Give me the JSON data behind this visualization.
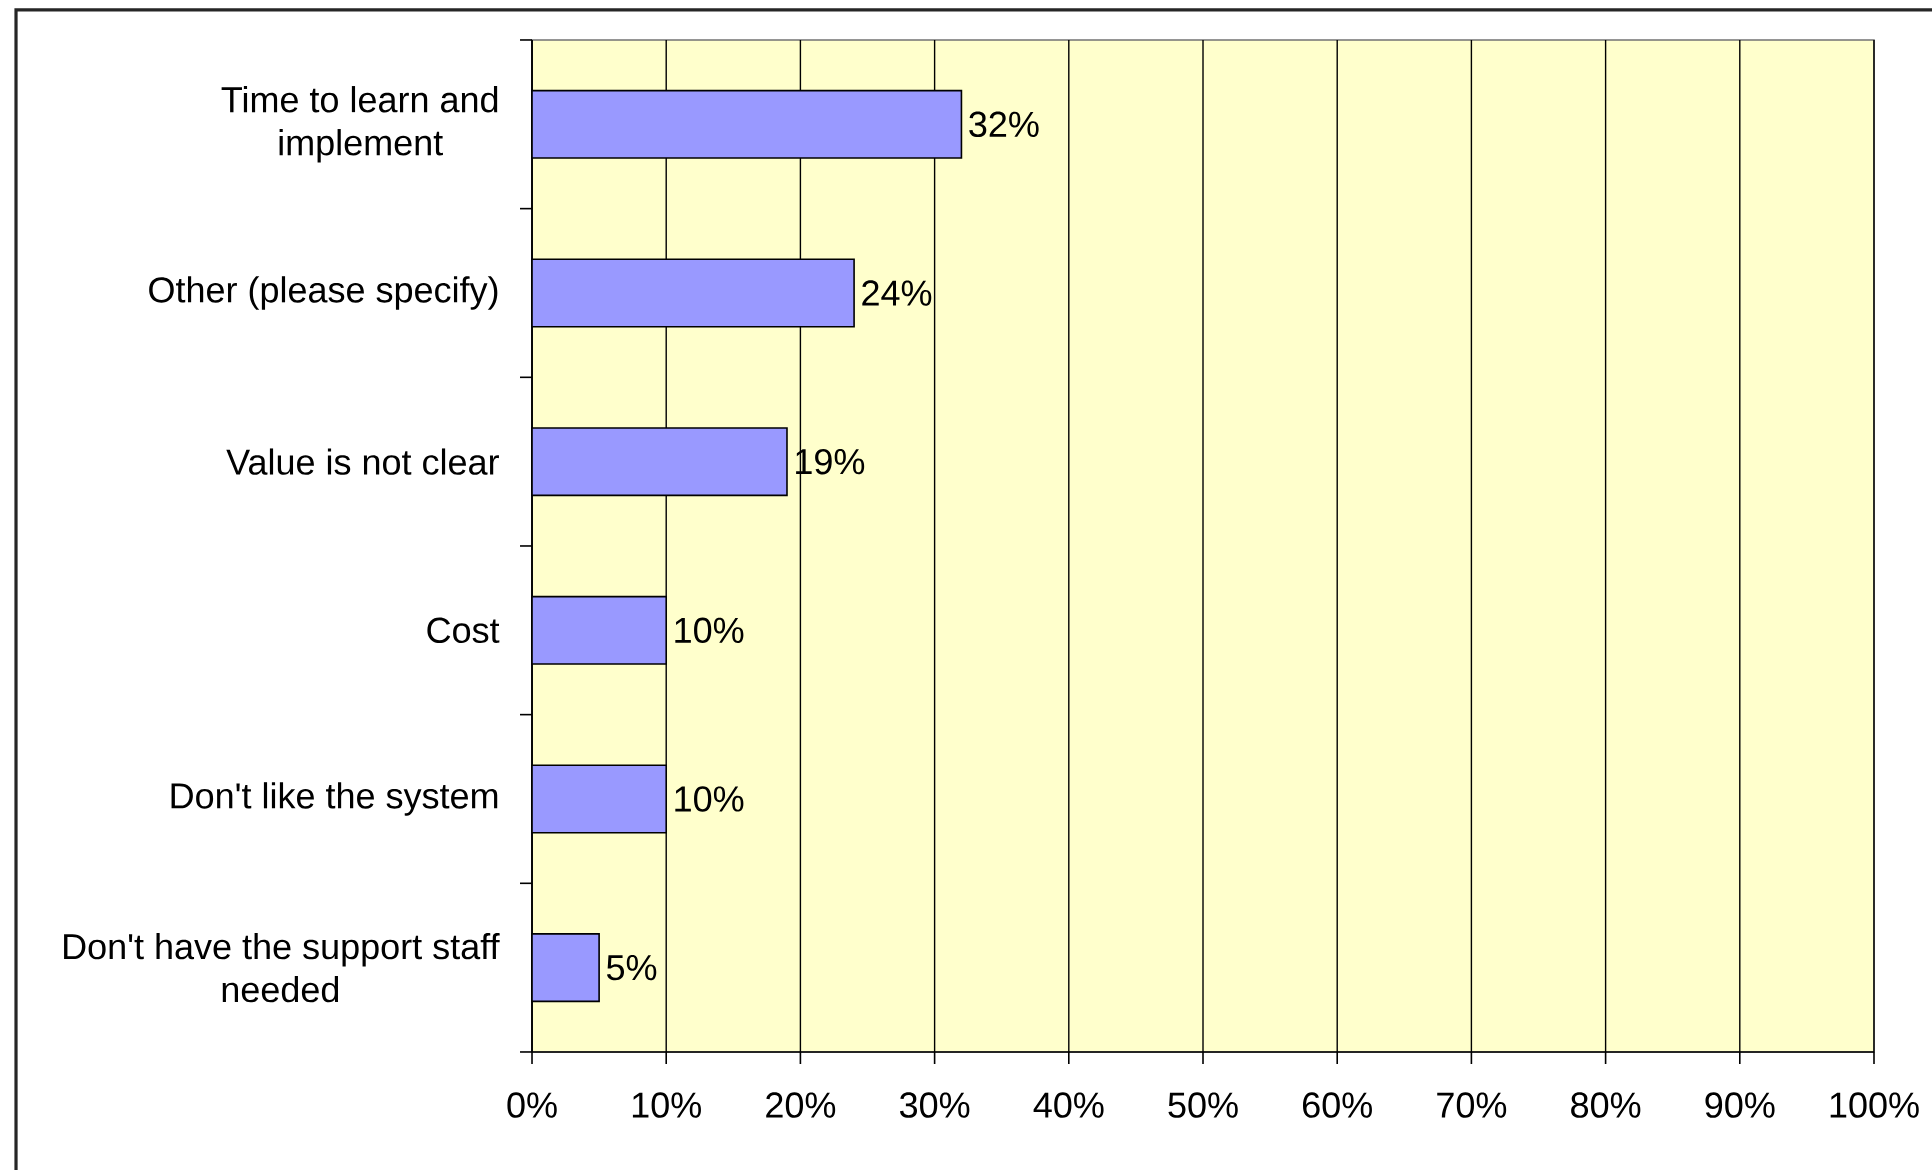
{
  "chart_data": {
    "type": "bar",
    "orientation": "horizontal",
    "categories": [
      "Time to learn and implement",
      "Other (please specify)",
      "Value is not clear",
      "Cost",
      "Don't like the system",
      "Don't have the support staff needed"
    ],
    "values": [
      32,
      24,
      19,
      10,
      10,
      5
    ],
    "value_labels": [
      "32%",
      "24%",
      "19%",
      "10%",
      "10%",
      "5%"
    ],
    "color": "#9999ff",
    "xlim": [
      0,
      100
    ],
    "xticks": [
      {
        "value": 0,
        "label": "0%"
      },
      {
        "value": 10,
        "label": "10%"
      },
      {
        "value": 20,
        "label": "20%"
      },
      {
        "value": 30,
        "label": "30%"
      },
      {
        "value": 40,
        "label": "40%"
      },
      {
        "value": 50,
        "label": "50%"
      },
      {
        "value": 60,
        "label": "60%"
      },
      {
        "value": 70,
        "label": "70%"
      },
      {
        "value": 80,
        "label": "80%"
      },
      {
        "value": 90,
        "label": "90%"
      },
      {
        "value": 100,
        "label": "100%"
      }
    ],
    "grid": "x"
  }
}
